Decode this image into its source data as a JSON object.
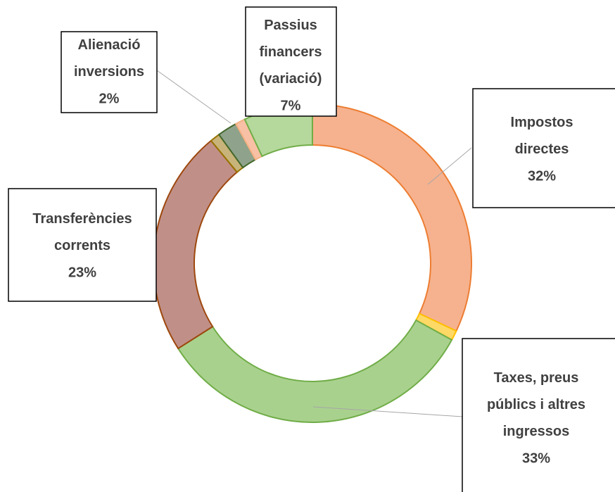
{
  "chart_data": {
    "type": "donut",
    "categories": [
      "Impostos directes",
      null,
      "Taxes, preus públics i altres ingressos",
      "Transferències corrents",
      null,
      "Alienació inversions",
      null,
      "Passius financers (variació)"
    ],
    "values": [
      32,
      1,
      33,
      23,
      1,
      2,
      1,
      7
    ],
    "value_labels": [
      "32%",
      null,
      "33%",
      "23%",
      null,
      "2%",
      null,
      "7%"
    ],
    "colors": [
      "#f6b28f",
      "#ffd966",
      "#a9d18e",
      "#c09088",
      "#c8b47a",
      "#8fa38c",
      "#f8c0a4",
      "#b5d89c"
    ],
    "edge_colors": [
      "#ed7d31",
      "#ffc000",
      "#70ad47",
      "#9e480e",
      "#997300",
      "#43682b",
      "#f4b183",
      "#70ad47"
    ]
  }
}
